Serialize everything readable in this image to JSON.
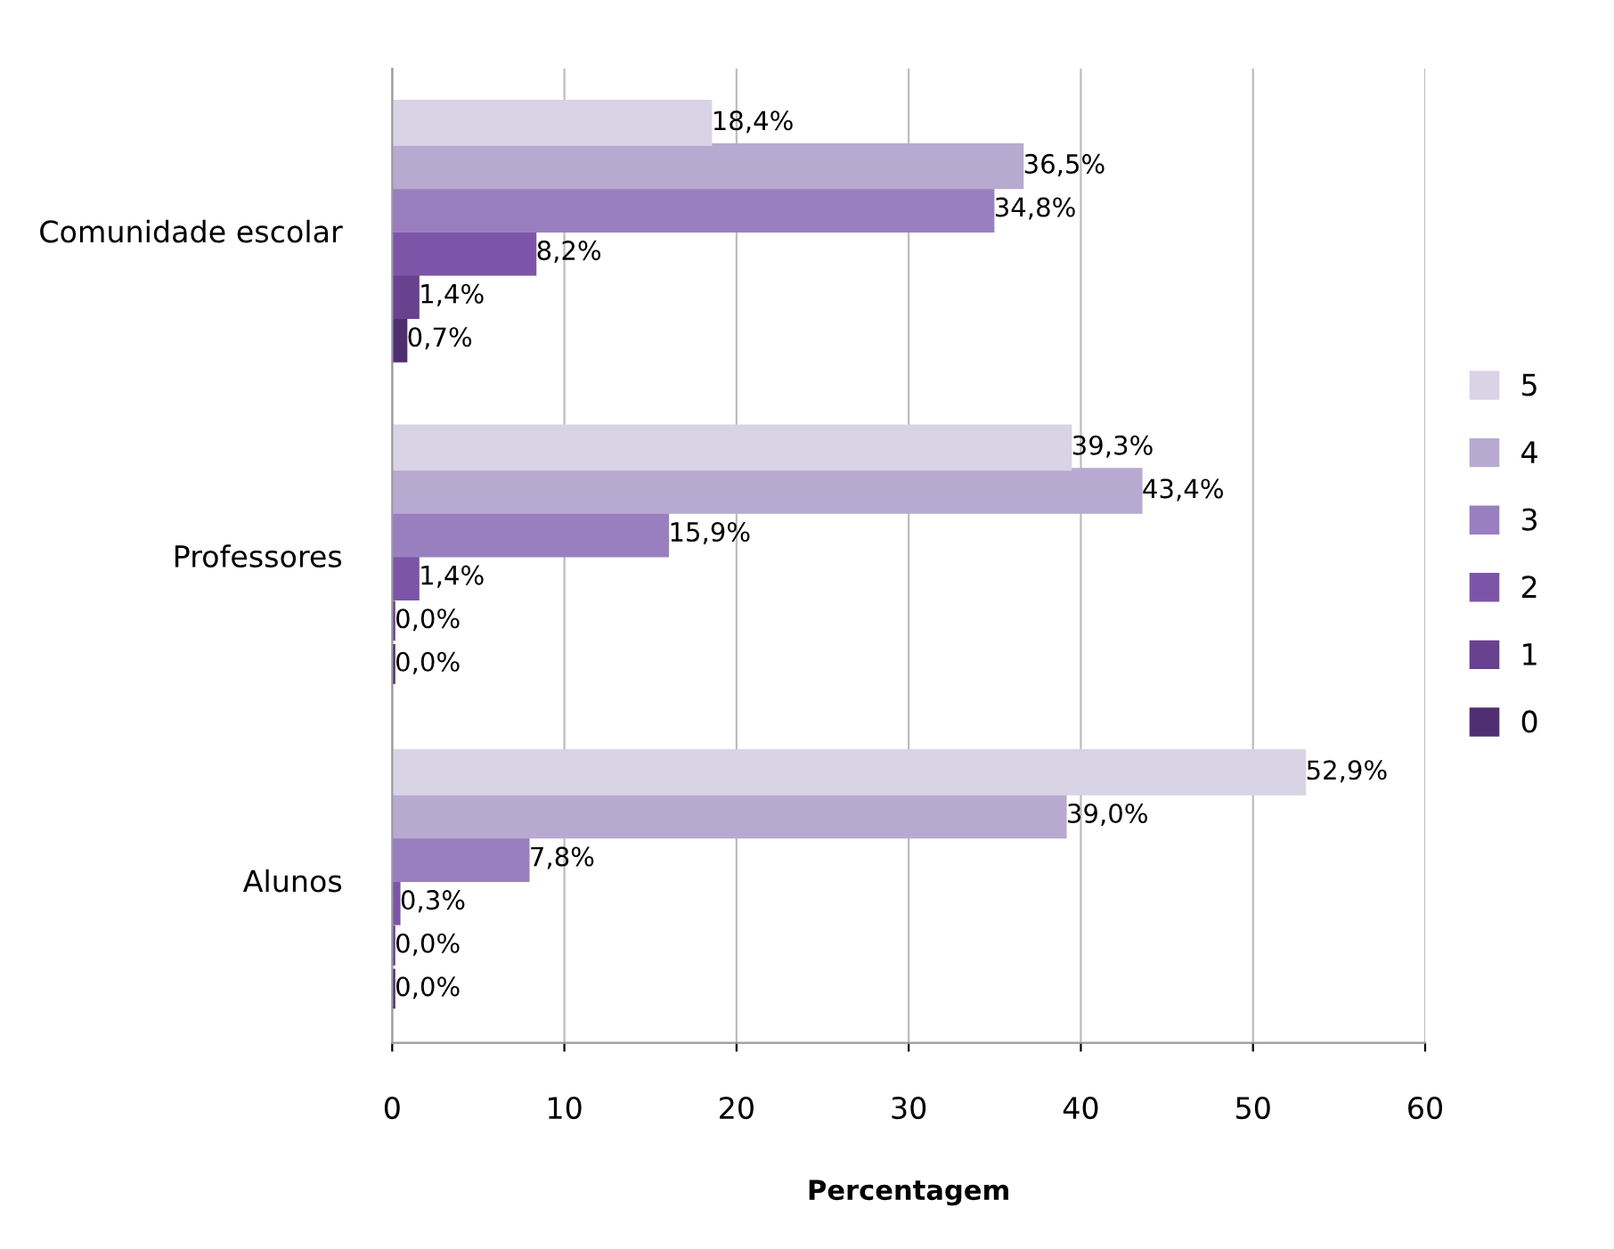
{
  "chart_data": {
    "type": "bar",
    "orientation": "horizontal",
    "xlabel": "Percentagem",
    "categories": [
      "Comunidade escolar",
      "Professores",
      "Alunos"
    ],
    "series": [
      {
        "name": "0",
        "color": "#4f2f72",
        "values": [
          0.7,
          0.0,
          0.0
        ],
        "value_labels": [
          "0,7%",
          "0,0%",
          "0,0%"
        ]
      },
      {
        "name": "1",
        "color": "#68418f",
        "values": [
          1.4,
          0.0,
          0.0
        ],
        "value_labels": [
          "1,4%",
          "0,0%",
          "0,0%"
        ]
      },
      {
        "name": "2",
        "color": "#7d55a8",
        "values": [
          8.2,
          1.4,
          0.3
        ],
        "value_labels": [
          "8,2%",
          "1,4%",
          "0,3%"
        ]
      },
      {
        "name": "3",
        "color": "#9a7fc0",
        "values": [
          34.8,
          15.9,
          7.8
        ],
        "value_labels": [
          "34,8%",
          "15,9%",
          "7,8%"
        ]
      },
      {
        "name": "4",
        "color": "#b8a9d1",
        "values": [
          36.5,
          43.4,
          39.0
        ],
        "value_labels": [
          "36,5%",
          "43,4%",
          "39,0%"
        ]
      },
      {
        "name": "5",
        "color": "#d9d3e6",
        "values": [
          18.4,
          39.3,
          52.9
        ],
        "value_labels": [
          "18,4%",
          "39,3%",
          "52,9%"
        ]
      }
    ],
    "xlim": [
      0,
      60
    ],
    "xticks": [
      0,
      10,
      20,
      30,
      40,
      50,
      60
    ],
    "grid": "x",
    "legend": "right"
  }
}
